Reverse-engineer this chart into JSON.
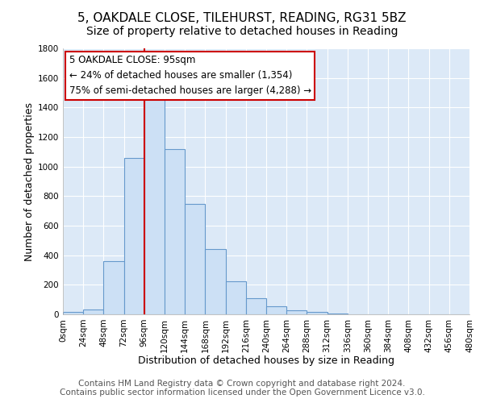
{
  "title": "5, OAKDALE CLOSE, TILEHURST, READING, RG31 5BZ",
  "subtitle": "Size of property relative to detached houses in Reading",
  "xlabel": "Distribution of detached houses by size in Reading",
  "ylabel": "Number of detached properties",
  "bin_edges": [
    0,
    24,
    48,
    72,
    96,
    120,
    144,
    168,
    192,
    216,
    240,
    264,
    288,
    312,
    336,
    360,
    384,
    408,
    432,
    456,
    480
  ],
  "bar_values": [
    15,
    35,
    360,
    1060,
    1470,
    1120,
    745,
    440,
    225,
    110,
    55,
    30,
    18,
    5,
    2,
    1,
    1,
    0,
    0,
    0
  ],
  "bar_color": "#cce0f5",
  "bar_edge_color": "#6699cc",
  "bar_edge_width": 0.8,
  "fig_background_color": "#ffffff",
  "ax_background_color": "#dce9f7",
  "grid_color": "#ffffff",
  "red_line_x": 96,
  "annotation_text": "5 OAKDALE CLOSE: 95sqm\n← 24% of detached houses are smaller (1,354)\n75% of semi-detached houses are larger (4,288) →",
  "annotation_box_color": "#ffffff",
  "annotation_box_edge_color": "#cc0000",
  "red_line_color": "#cc0000",
  "ylim": [
    0,
    1800
  ],
  "yticks": [
    0,
    200,
    400,
    600,
    800,
    1000,
    1200,
    1400,
    1600,
    1800
  ],
  "xlim": [
    0,
    480
  ],
  "footer_line1": "Contains HM Land Registry data © Crown copyright and database right 2024.",
  "footer_line2": "Contains public sector information licensed under the Open Government Licence v3.0.",
  "title_fontsize": 11,
  "xlabel_fontsize": 9,
  "ylabel_fontsize": 9,
  "tick_fontsize": 7.5,
  "annotation_fontsize": 8.5,
  "footer_fontsize": 7.5
}
